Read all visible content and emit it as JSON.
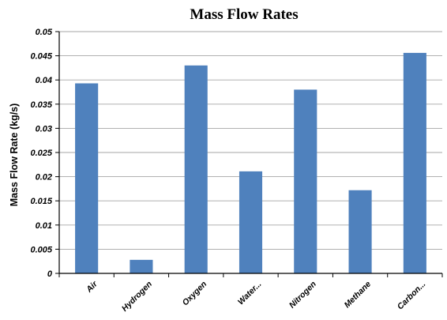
{
  "chart_data": {
    "type": "bar",
    "title": "Mass Flow Rates",
    "xlabel": "",
    "ylabel": "Mass Flow Rate (kg/s)",
    "categories": [
      "Air",
      "Hydrogen",
      "Oxygen",
      "Water...",
      "Nitrogen",
      "Methane",
      "Carbon..."
    ],
    "values": [
      0.0393,
      0.0028,
      0.043,
      0.0211,
      0.038,
      0.0172,
      0.0456
    ],
    "ylim": [
      0,
      0.05
    ],
    "yticks": [
      "0",
      "0.005",
      "0.01",
      "0.015",
      "0.02",
      "0.025",
      "0.03",
      "0.035",
      "0.04",
      "0.045",
      "0.05"
    ],
    "grid": true,
    "legend": "none",
    "bar_color": "#4f81bd",
    "grid_color": "#a6a6a6",
    "axis_color": "#000000"
  }
}
